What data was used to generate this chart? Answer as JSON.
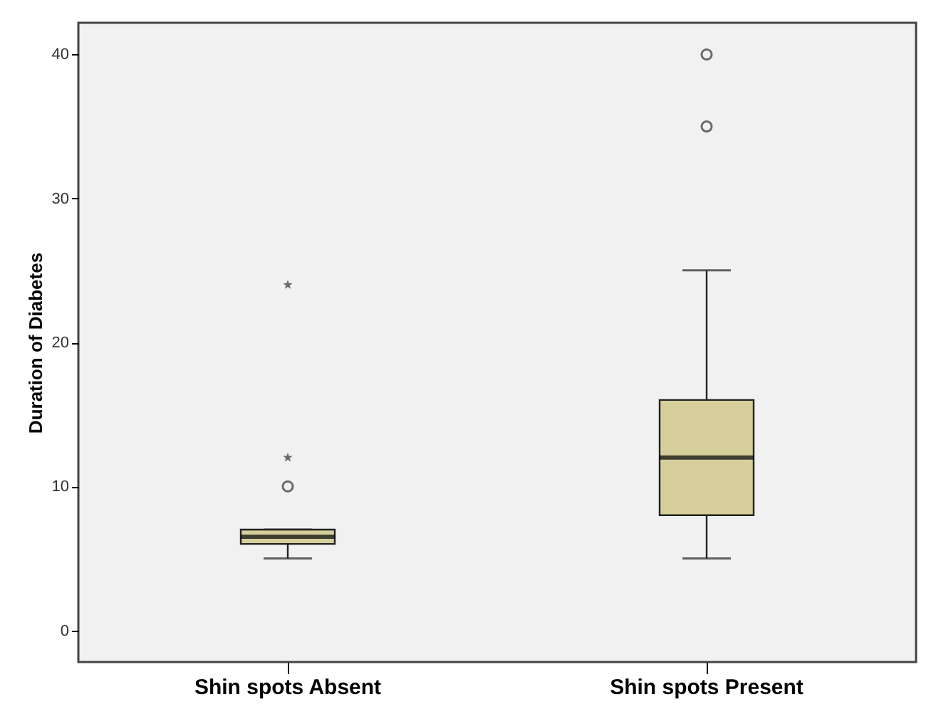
{
  "chart_data": {
    "type": "box",
    "ylabel": "Duration of Diabetes",
    "categories": [
      "Shin spots Absent",
      "Shin spots Present"
    ],
    "ylim": [
      -2.2,
      42.2
    ],
    "yticks": [
      0,
      10,
      20,
      30,
      40
    ],
    "grid": false,
    "series": [
      {
        "color": "#d6cf9c",
        "marker": "circle",
        "boxes": [
          {
            "low": 5,
            "q1": 6,
            "median": 6.5,
            "q3": 7,
            "high": 7,
            "outliers": [
              10
            ]
          },
          {
            "low": 5,
            "q1": 8,
            "median": 12,
            "q3": 16,
            "high": 25,
            "outliers": [
              35,
              40
            ]
          }
        ]
      },
      {
        "type": "scatter",
        "color": "#333333",
        "marker": "star",
        "x": [
          "Shin spots Absent",
          "Shin spots Absent"
        ],
        "values": [
          24,
          12
        ]
      }
    ]
  }
}
